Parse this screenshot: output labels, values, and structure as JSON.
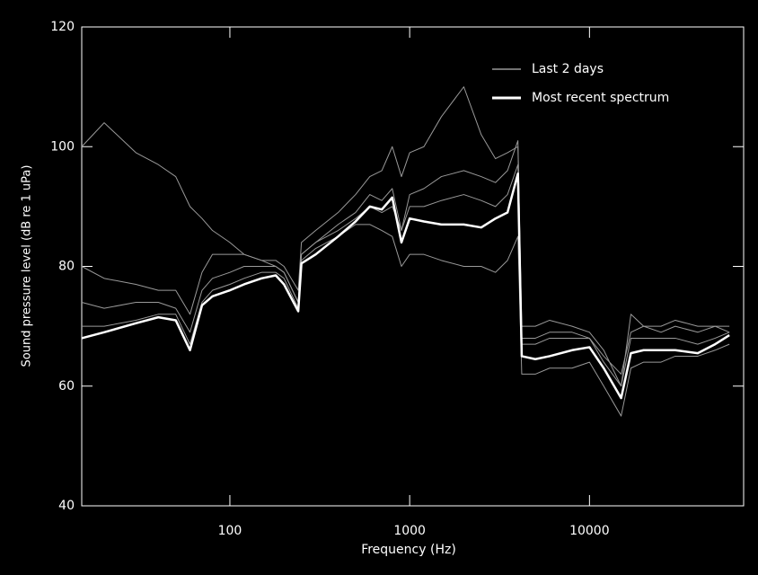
{
  "chart_data": {
    "type": "line",
    "log_x": true,
    "xlabel": "Frequency (Hz)",
    "ylabel": "Sound pressure level (dB re 1 uPa)",
    "xlim": [
      15,
      72000
    ],
    "ylim": [
      40,
      120
    ],
    "xticks": [
      100,
      1000,
      10000
    ],
    "yticks": [
      40,
      60,
      80,
      100,
      120
    ],
    "x": [
      15,
      20,
      30,
      40,
      50,
      60,
      70,
      80,
      100,
      120,
      150,
      180,
      200,
      240,
      250,
      300,
      400,
      500,
      600,
      700,
      800,
      900,
      1000,
      1200,
      1500,
      2000,
      2500,
      3000,
      3500,
      4000,
      4200,
      5000,
      6000,
      8000,
      10000,
      12000,
      15000,
      17000,
      20000,
      25000,
      30000,
      40000,
      50000,
      60000
    ],
    "legend": "upper right",
    "series": [
      {
        "name": "Last 2 days",
        "color": "#999999",
        "width": 1,
        "values": [
          80,
          78,
          77,
          76,
          76,
          72,
          79,
          82,
          82,
          82,
          81,
          81,
          80,
          76,
          84,
          86,
          89,
          92,
          95,
          96,
          100,
          95,
          99,
          100,
          105,
          110,
          102,
          98,
          99,
          100,
          70,
          70,
          71,
          70,
          69,
          66,
          60,
          72,
          70,
          69,
          70,
          69,
          70,
          70
        ]
      },
      {
        "name": "Last 2 days",
        "color": "#999999",
        "width": 1,
        "values": [
          100,
          104,
          99,
          97,
          95,
          90,
          88,
          86,
          84,
          82,
          81,
          80,
          79,
          74,
          82,
          84,
          86,
          88,
          90,
          89,
          90,
          86,
          92,
          93,
          95,
          96,
          95,
          94,
          96,
          101,
          68,
          68,
          69,
          69,
          68,
          65,
          62,
          69,
          70,
          70,
          71,
          70,
          70,
          69
        ]
      },
      {
        "name": "Last 2 days",
        "color": "#999999",
        "width": 1,
        "values": [
          74,
          73,
          74,
          74,
          73,
          69,
          76,
          78,
          79,
          80,
          80,
          80,
          79,
          74,
          82,
          84,
          87,
          89,
          92,
          91,
          93,
          86,
          90,
          90,
          91,
          92,
          91,
          90,
          92,
          97,
          67,
          67,
          68,
          68,
          68,
          64,
          60,
          68,
          68,
          68,
          68,
          67,
          68,
          69
        ]
      },
      {
        "name": "Last 2 days",
        "color": "#999999",
        "width": 1,
        "values": [
          70,
          70,
          71,
          72,
          72,
          67,
          74,
          76,
          77,
          78,
          79,
          79,
          78,
          73,
          81,
          83,
          85,
          87,
          87,
          86,
          85,
          80,
          82,
          82,
          81,
          80,
          80,
          79,
          81,
          85,
          62,
          62,
          63,
          63,
          64,
          60,
          55,
          63,
          64,
          64,
          65,
          65,
          66,
          67
        ]
      },
      {
        "name": "Most recent spectrum",
        "color": "#ffffff",
        "width": 2.5,
        "values": [
          68,
          69,
          70.5,
          71.5,
          71,
          66,
          73.5,
          75,
          76,
          77,
          78,
          78.5,
          77,
          72.5,
          80.5,
          82,
          85,
          87.5,
          90,
          89.5,
          91.5,
          84,
          88,
          87.5,
          87,
          87,
          86.5,
          88,
          89,
          95.5,
          65,
          64.5,
          65,
          66,
          66.5,
          63,
          58,
          65.5,
          66,
          66,
          66,
          65.5,
          67,
          68.5
        ]
      }
    ]
  }
}
